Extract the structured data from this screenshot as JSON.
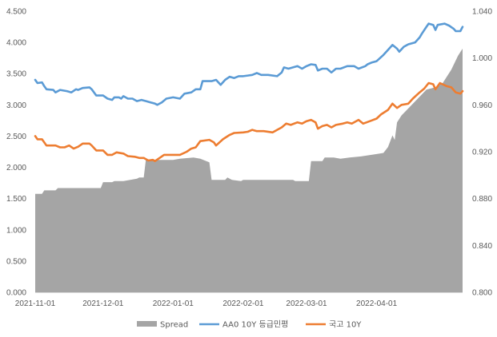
{
  "chart_data": {
    "type": "line",
    "title": "",
    "xlabel": "",
    "ylabel": "",
    "x_range": [
      "2021-11-01",
      "2022-05-09"
    ],
    "x_ticks": [
      "2021-11-01",
      "2021-12-01",
      "2022-01-01",
      "2022-02-01",
      "2022-03-01",
      "2022-04-01"
    ],
    "ylim_left": [
      0,
      4.5
    ],
    "yticks_left": [
      "0.000",
      "0.500",
      "1.000",
      "1.500",
      "2.000",
      "2.500",
      "3.000",
      "3.500",
      "4.000",
      "4.500"
    ],
    "ylim_right": [
      0.8,
      1.04
    ],
    "yticks_right": [
      "0.800",
      "0.840",
      "0.880",
      "0.920",
      "0.960",
      "1.000",
      "1.040"
    ],
    "grid": false,
    "legend_position": "bottom",
    "series": [
      {
        "name": "Spread",
        "type": "area",
        "axis": "right",
        "color": "#A5A5A5",
        "points": [
          [
            "2021-11-01",
            0.884
          ],
          [
            "2021-11-04",
            0.884
          ],
          [
            "2021-11-05",
            0.887
          ],
          [
            "2021-11-10",
            0.887
          ],
          [
            "2021-11-11",
            0.889
          ],
          [
            "2021-11-30",
            0.889
          ],
          [
            "2021-12-01",
            0.894
          ],
          [
            "2021-12-05",
            0.894
          ],
          [
            "2021-12-06",
            0.895
          ],
          [
            "2021-12-10",
            0.895
          ],
          [
            "2021-12-13",
            0.896
          ],
          [
            "2021-12-16",
            0.897
          ],
          [
            "2021-12-17",
            0.898
          ],
          [
            "2021-12-19",
            0.898
          ],
          [
            "2021-12-20",
            0.914
          ],
          [
            "2021-12-22",
            0.913
          ],
          [
            "2022-01-01",
            0.913
          ],
          [
            "2022-01-04",
            0.914
          ],
          [
            "2022-01-10",
            0.915
          ],
          [
            "2022-01-13",
            0.914
          ],
          [
            "2022-01-17",
            0.911
          ],
          [
            "2022-01-18",
            0.896
          ],
          [
            "2022-01-24",
            0.896
          ],
          [
            "2022-01-25",
            0.898
          ],
          [
            "2022-01-27",
            0.896
          ],
          [
            "2022-01-31",
            0.895
          ],
          [
            "2022-02-01",
            0.896
          ],
          [
            "2022-02-20",
            0.896
          ],
          [
            "2022-02-23",
            0.896
          ],
          [
            "2022-02-24",
            0.895
          ],
          [
            "2022-03-02",
            0.895
          ],
          [
            "2022-03-03",
            0.912
          ],
          [
            "2022-03-08",
            0.912
          ],
          [
            "2022-03-09",
            0.915
          ],
          [
            "2022-03-13",
            0.915
          ],
          [
            "2022-03-16",
            0.914
          ],
          [
            "2022-03-20",
            0.915
          ],
          [
            "2022-03-25",
            0.916
          ],
          [
            "2022-04-01",
            0.918
          ],
          [
            "2022-04-04",
            0.919
          ],
          [
            "2022-04-06",
            0.924
          ],
          [
            "2022-04-08",
            0.934
          ],
          [
            "2022-04-09",
            0.93
          ],
          [
            "2022-04-10",
            0.945
          ],
          [
            "2022-04-12",
            0.951
          ],
          [
            "2022-04-15",
            0.957
          ],
          [
            "2022-04-20",
            0.967
          ],
          [
            "2022-04-23",
            0.973
          ],
          [
            "2022-04-27",
            0.975
          ],
          [
            "2022-04-30",
            0.978
          ],
          [
            "2022-05-04",
            0.99
          ],
          [
            "2022-05-07",
            1.002
          ],
          [
            "2022-05-09",
            1.008
          ]
        ]
      },
      {
        "name": "AA0 10Y 등급민평",
        "type": "line",
        "axis": "left",
        "color": "#5B9BD5",
        "points": [
          [
            "2021-11-01",
            3.4
          ],
          [
            "2021-11-02",
            3.35
          ],
          [
            "2021-11-04",
            3.36
          ],
          [
            "2021-11-05",
            3.3
          ],
          [
            "2021-11-06",
            3.25
          ],
          [
            "2021-11-09",
            3.24
          ],
          [
            "2021-11-10",
            3.2
          ],
          [
            "2021-11-12",
            3.24
          ],
          [
            "2021-11-15",
            3.22
          ],
          [
            "2021-11-17",
            3.2
          ],
          [
            "2021-11-19",
            3.25
          ],
          [
            "2021-11-20",
            3.24
          ],
          [
            "2021-11-22",
            3.27
          ],
          [
            "2021-11-25",
            3.28
          ],
          [
            "2021-11-26",
            3.25
          ],
          [
            "2021-11-28",
            3.15
          ],
          [
            "2021-12-01",
            3.15
          ],
          [
            "2021-12-03",
            3.1
          ],
          [
            "2021-12-05",
            3.08
          ],
          [
            "2021-12-06",
            3.12
          ],
          [
            "2021-12-08",
            3.12
          ],
          [
            "2021-12-09",
            3.1
          ],
          [
            "2021-12-10",
            3.14
          ],
          [
            "2021-12-12",
            3.1
          ],
          [
            "2021-12-14",
            3.1
          ],
          [
            "2021-12-16",
            3.06
          ],
          [
            "2021-12-18",
            3.08
          ],
          [
            "2021-12-20",
            3.06
          ],
          [
            "2021-12-22",
            3.04
          ],
          [
            "2021-12-24",
            3.02
          ],
          [
            "2021-12-25",
            3.0
          ],
          [
            "2021-12-27",
            3.04
          ],
          [
            "2021-12-29",
            3.1
          ],
          [
            "2022-01-01",
            3.12
          ],
          [
            "2022-01-04",
            3.1
          ],
          [
            "2022-01-06",
            3.18
          ],
          [
            "2022-01-09",
            3.2
          ],
          [
            "2022-01-11",
            3.25
          ],
          [
            "2022-01-13",
            3.25
          ],
          [
            "2022-01-14",
            3.38
          ],
          [
            "2022-01-18",
            3.38
          ],
          [
            "2022-01-20",
            3.4
          ],
          [
            "2022-01-22",
            3.32
          ],
          [
            "2022-01-24",
            3.4
          ],
          [
            "2022-01-26",
            3.45
          ],
          [
            "2022-01-28",
            3.43
          ],
          [
            "2022-01-30",
            3.46
          ],
          [
            "2022-02-01",
            3.46
          ],
          [
            "2022-02-03",
            3.47
          ],
          [
            "2022-02-05",
            3.48
          ],
          [
            "2022-02-07",
            3.51
          ],
          [
            "2022-02-09",
            3.48
          ],
          [
            "2022-02-12",
            3.48
          ],
          [
            "2022-02-16",
            3.46
          ],
          [
            "2022-02-18",
            3.52
          ],
          [
            "2022-02-19",
            3.6
          ],
          [
            "2022-02-21",
            3.58
          ],
          [
            "2022-02-25",
            3.62
          ],
          [
            "2022-02-27",
            3.58
          ],
          [
            "2022-03-01",
            3.62
          ],
          [
            "2022-03-03",
            3.65
          ],
          [
            "2022-03-05",
            3.64
          ],
          [
            "2022-03-06",
            3.55
          ],
          [
            "2022-03-08",
            3.58
          ],
          [
            "2022-03-10",
            3.58
          ],
          [
            "2022-03-12",
            3.52
          ],
          [
            "2022-03-14",
            3.58
          ],
          [
            "2022-03-16",
            3.58
          ],
          [
            "2022-03-19",
            3.62
          ],
          [
            "2022-03-22",
            3.62
          ],
          [
            "2022-03-24",
            3.58
          ],
          [
            "2022-03-27",
            3.62
          ],
          [
            "2022-03-28",
            3.65
          ],
          [
            "2022-03-30",
            3.68
          ],
          [
            "2022-04-01",
            3.7
          ],
          [
            "2022-04-04",
            3.8
          ],
          [
            "2022-04-06",
            3.88
          ],
          [
            "2022-04-08",
            3.96
          ],
          [
            "2022-04-10",
            3.9
          ],
          [
            "2022-04-11",
            3.85
          ],
          [
            "2022-04-13",
            3.93
          ],
          [
            "2022-04-15",
            3.97
          ],
          [
            "2022-04-18",
            4.0
          ],
          [
            "2022-04-20",
            4.08
          ],
          [
            "2022-04-21",
            4.14
          ],
          [
            "2022-04-23",
            4.25
          ],
          [
            "2022-04-24",
            4.3
          ],
          [
            "2022-04-26",
            4.28
          ],
          [
            "2022-04-27",
            4.2
          ],
          [
            "2022-04-28",
            4.28
          ],
          [
            "2022-05-01",
            4.3
          ],
          [
            "2022-05-03",
            4.27
          ],
          [
            "2022-05-05",
            4.22
          ],
          [
            "2022-05-06",
            4.18
          ],
          [
            "2022-05-08",
            4.18
          ],
          [
            "2022-05-09",
            4.25
          ]
        ]
      },
      {
        "name": "국고 10Y",
        "type": "line",
        "axis": "left",
        "color": "#ED7D31",
        "points": [
          [
            "2021-11-01",
            2.5
          ],
          [
            "2021-11-02",
            2.45
          ],
          [
            "2021-11-04",
            2.45
          ],
          [
            "2021-11-06",
            2.35
          ],
          [
            "2021-11-10",
            2.35
          ],
          [
            "2021-11-12",
            2.32
          ],
          [
            "2021-11-14",
            2.32
          ],
          [
            "2021-11-16",
            2.35
          ],
          [
            "2021-11-18",
            2.3
          ],
          [
            "2021-11-20",
            2.33
          ],
          [
            "2021-11-22",
            2.38
          ],
          [
            "2021-11-25",
            2.38
          ],
          [
            "2021-11-26",
            2.35
          ],
          [
            "2021-11-28",
            2.27
          ],
          [
            "2021-12-01",
            2.27
          ],
          [
            "2021-12-03",
            2.2
          ],
          [
            "2021-12-05",
            2.2
          ],
          [
            "2021-12-07",
            2.24
          ],
          [
            "2021-12-10",
            2.22
          ],
          [
            "2021-12-12",
            2.18
          ],
          [
            "2021-12-15",
            2.17
          ],
          [
            "2021-12-17",
            2.15
          ],
          [
            "2021-12-19",
            2.15
          ],
          [
            "2021-12-21",
            2.11
          ],
          [
            "2021-12-23",
            2.12
          ],
          [
            "2021-12-24",
            2.1
          ],
          [
            "2021-12-26",
            2.15
          ],
          [
            "2021-12-28",
            2.2
          ],
          [
            "2022-01-01",
            2.2
          ],
          [
            "2022-01-04",
            2.2
          ],
          [
            "2022-01-07",
            2.25
          ],
          [
            "2022-01-09",
            2.3
          ],
          [
            "2022-01-11",
            2.32
          ],
          [
            "2022-01-13",
            2.42
          ],
          [
            "2022-01-17",
            2.44
          ],
          [
            "2022-01-19",
            2.4
          ],
          [
            "2022-01-20",
            2.35
          ],
          [
            "2022-01-23",
            2.45
          ],
          [
            "2022-01-26",
            2.52
          ],
          [
            "2022-01-28",
            2.55
          ],
          [
            "2022-02-01",
            2.56
          ],
          [
            "2022-02-03",
            2.57
          ],
          [
            "2022-02-05",
            2.6
          ],
          [
            "2022-02-07",
            2.58
          ],
          [
            "2022-02-10",
            2.58
          ],
          [
            "2022-02-14",
            2.56
          ],
          [
            "2022-02-16",
            2.6
          ],
          [
            "2022-02-18",
            2.64
          ],
          [
            "2022-02-20",
            2.7
          ],
          [
            "2022-02-22",
            2.68
          ],
          [
            "2022-02-25",
            2.72
          ],
          [
            "2022-02-27",
            2.7
          ],
          [
            "2022-03-01",
            2.74
          ],
          [
            "2022-03-03",
            2.76
          ],
          [
            "2022-03-05",
            2.72
          ],
          [
            "2022-03-06",
            2.62
          ],
          [
            "2022-03-08",
            2.66
          ],
          [
            "2022-03-10",
            2.68
          ],
          [
            "2022-03-12",
            2.64
          ],
          [
            "2022-03-14",
            2.68
          ],
          [
            "2022-03-17",
            2.7
          ],
          [
            "2022-03-19",
            2.72
          ],
          [
            "2022-03-21",
            2.7
          ],
          [
            "2022-03-24",
            2.76
          ],
          [
            "2022-03-26",
            2.7
          ],
          [
            "2022-03-29",
            2.74
          ],
          [
            "2022-04-01",
            2.78
          ],
          [
            "2022-04-03",
            2.85
          ],
          [
            "2022-04-06",
            2.92
          ],
          [
            "2022-04-08",
            3.02
          ],
          [
            "2022-04-10",
            2.95
          ],
          [
            "2022-04-12",
            3.0
          ],
          [
            "2022-04-15",
            3.02
          ],
          [
            "2022-04-17",
            3.1
          ],
          [
            "2022-04-20",
            3.2
          ],
          [
            "2022-04-22",
            3.26
          ],
          [
            "2022-04-24",
            3.35
          ],
          [
            "2022-04-26",
            3.33
          ],
          [
            "2022-04-27",
            3.25
          ],
          [
            "2022-04-29",
            3.35
          ],
          [
            "2022-05-02",
            3.3
          ],
          [
            "2022-05-04",
            3.28
          ],
          [
            "2022-05-06",
            3.2
          ],
          [
            "2022-05-08",
            3.18
          ],
          [
            "2022-05-09",
            3.22
          ]
        ]
      }
    ]
  }
}
